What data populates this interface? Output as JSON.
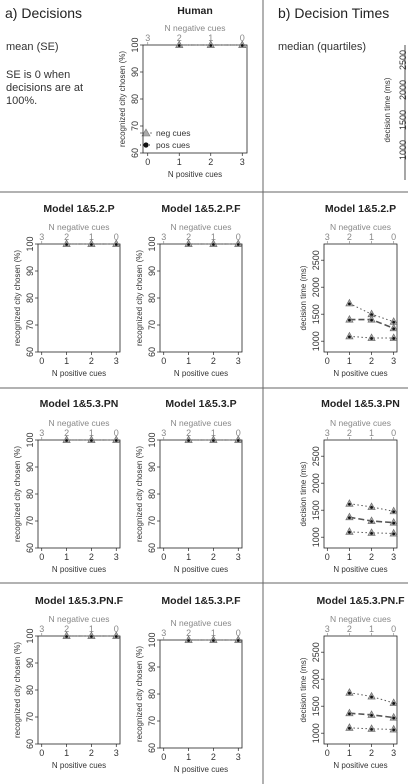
{
  "headers": {
    "decisions": "a) Decisions",
    "times": "b) Decision Times"
  },
  "notes": {
    "mean": "mean (SE)",
    "se_line1": "SE is 0 when",
    "se_line2": "decisions are at",
    "se_line3": "100%.",
    "median": "median (quartiles)"
  },
  "axes": {
    "top_label": "N negative cues",
    "bottom_label": "N positive cues",
    "decisions_ylabel": "recognized city chosen (%)",
    "times_ylabel": "decision time (ms)",
    "top_ticks": [
      "3",
      "2",
      "1",
      "0"
    ],
    "bottom_ticks": [
      "0",
      "1",
      "2",
      "3"
    ],
    "decisions_yticks": [
      "60",
      "70",
      "80",
      "90",
      "100"
    ],
    "times_yticks": [
      "1000",
      "1500",
      "2000",
      "2500"
    ]
  },
  "legend": {
    "neg": "neg cues",
    "pos": "pos cues"
  },
  "colors": {
    "gray_line": "#999999",
    "dark_line": "#555555",
    "neg_marker": "#aaaaaa",
    "pos_marker": "#111111",
    "divider": "#666666"
  },
  "chart_data": [
    {
      "title": "Human",
      "type": "line",
      "panel": "decisions",
      "x": [
        1,
        2,
        3
      ],
      "ylim": [
        60,
        100
      ],
      "series": [
        {
          "name": "neg cues",
          "values": [
            100,
            100,
            100
          ]
        },
        {
          "name": "pos cues",
          "values": [
            100,
            100,
            100
          ]
        }
      ]
    },
    {
      "title": "Model 1&5.2.P",
      "type": "line",
      "panel": "decisions",
      "x": [
        1,
        2,
        3
      ],
      "ylim": [
        60,
        100
      ],
      "series": [
        {
          "values": [
            100,
            100,
            100
          ]
        },
        {
          "values": [
            100,
            100,
            100
          ]
        }
      ]
    },
    {
      "title": "Model 1&5.2.P.F",
      "type": "line",
      "panel": "decisions",
      "x": [
        1,
        2,
        3
      ],
      "ylim": [
        60,
        100
      ],
      "series": [
        {
          "values": [
            100,
            100,
            100
          ]
        },
        {
          "values": [
            100,
            100,
            100
          ]
        }
      ]
    },
    {
      "title": "Model 1&5.2.P",
      "type": "line",
      "panel": "times",
      "x": [
        1,
        2,
        3
      ],
      "ylim": [
        800,
        2800
      ],
      "series": [
        {
          "values": [
            1700,
            1500,
            1360
          ]
        },
        {
          "values": [
            1400,
            1400,
            1240
          ]
        },
        {
          "values": [
            1090,
            1060,
            1060
          ]
        }
      ]
    },
    {
      "title": "Model 1&5.3.PN",
      "type": "line",
      "panel": "decisions",
      "x": [
        1,
        2,
        3
      ],
      "ylim": [
        60,
        100
      ],
      "series": [
        {
          "values": [
            100,
            100,
            100
          ]
        },
        {
          "values": [
            100,
            100,
            100
          ]
        }
      ]
    },
    {
      "title": "Model 1&5.3.P",
      "type": "line",
      "panel": "decisions",
      "x": [
        1,
        2,
        3
      ],
      "ylim": [
        60,
        100
      ],
      "series": [
        {
          "values": [
            100,
            100,
            100
          ]
        },
        {
          "values": [
            100,
            100,
            100
          ]
        }
      ]
    },
    {
      "title": "Model 1&5.3.PN",
      "type": "line",
      "panel": "times",
      "x": [
        1,
        2,
        3
      ],
      "ylim": [
        800,
        2800
      ],
      "series": [
        {
          "values": [
            1620,
            1560,
            1480
          ]
        },
        {
          "values": [
            1370,
            1300,
            1270
          ]
        },
        {
          "values": [
            1100,
            1080,
            1070
          ]
        }
      ]
    },
    {
      "title": "Model 1&5.3.PN.F",
      "type": "line",
      "panel": "decisions",
      "x": [
        1,
        2,
        3
      ],
      "ylim": [
        60,
        100
      ],
      "series": [
        {
          "values": [
            100,
            100,
            100
          ]
        },
        {
          "values": [
            100,
            100,
            100
          ]
        }
      ]
    },
    {
      "title": "Model 1&5.3.P.F",
      "type": "line",
      "panel": "decisions",
      "x": [
        1,
        2,
        3
      ],
      "ylim": [
        60,
        100
      ],
      "series": [
        {
          "values": [
            100,
            100,
            100
          ]
        },
        {
          "values": [
            100,
            100,
            100
          ]
        }
      ]
    },
    {
      "title": "Model 1&5.3.PN.F",
      "type": "line",
      "panel": "times",
      "x": [
        1,
        2,
        3
      ],
      "ylim": [
        800,
        2800
      ],
      "series": [
        {
          "values": [
            1750,
            1680,
            1560
          ]
        },
        {
          "values": [
            1370,
            1340,
            1290
          ]
        },
        {
          "values": [
            1100,
            1080,
            1070
          ]
        }
      ]
    }
  ]
}
